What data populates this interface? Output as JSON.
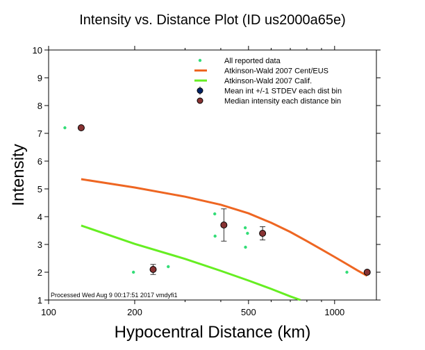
{
  "chart_data": {
    "type": "scatter",
    "title": "Intensity vs. Distance Plot (ID us2000a65e)",
    "xlabel": "Hypocentral Distance (km)",
    "ylabel": "Intensity",
    "x_scale": "log",
    "xlim": [
      100,
      1400
    ],
    "ylim": [
      1,
      10
    ],
    "x_ticks": [
      100,
      200,
      500,
      1000
    ],
    "y_ticks": [
      1,
      2,
      3,
      4,
      5,
      6,
      7,
      8,
      9,
      10
    ],
    "grid": false,
    "legend_position": "top-right",
    "footer": "Processed Wed Aug  9 00:17:51 2017 vmdyfi1",
    "series": [
      {
        "name": "All reported data",
        "kind": "points",
        "color": "#33dd77",
        "x": [
          114,
          198,
          262,
          381,
          382,
          487,
          496,
          488,
          1104,
          1295
        ],
        "y": [
          7.2,
          2.0,
          2.2,
          4.1,
          3.3,
          3.6,
          3.4,
          2.9,
          2.0,
          2.0
        ]
      },
      {
        "name": "Atkinson-Wald 2007 Cent/EUS",
        "kind": "line",
        "color": "#ee6622",
        "x": [
          130,
          200,
          300,
          400,
          500,
          600,
          700,
          800,
          900,
          1000,
          1100,
          1200,
          1300
        ],
        "y": [
          5.35,
          5.05,
          4.72,
          4.43,
          4.12,
          3.78,
          3.45,
          3.12,
          2.82,
          2.55,
          2.3,
          2.07,
          1.87
        ]
      },
      {
        "name": "Atkinson-Wald 2007 Calif.",
        "kind": "line",
        "color": "#66ee22",
        "x": [
          130,
          200,
          300,
          400,
          500,
          600,
          700,
          760
        ],
        "y": [
          3.68,
          3.02,
          2.48,
          2.05,
          1.7,
          1.4,
          1.13,
          1.0
        ]
      },
      {
        "name": "Mean int +/-1 STDEV each dist bin",
        "kind": "errorbar",
        "color": "#002266",
        "x": [
          130,
          232,
          410,
          560,
          1300
        ],
        "y": [
          7.2,
          2.1,
          3.7,
          3.4,
          2.0
        ],
        "err": [
          0,
          0.18,
          0.58,
          0.24,
          0
        ]
      },
      {
        "name": "Median intensity each distance bin",
        "kind": "points",
        "color": "#883333",
        "x": [
          130,
          232,
          410,
          560,
          1300
        ],
        "y": [
          7.2,
          2.1,
          3.7,
          3.4,
          2.0
        ]
      }
    ]
  }
}
